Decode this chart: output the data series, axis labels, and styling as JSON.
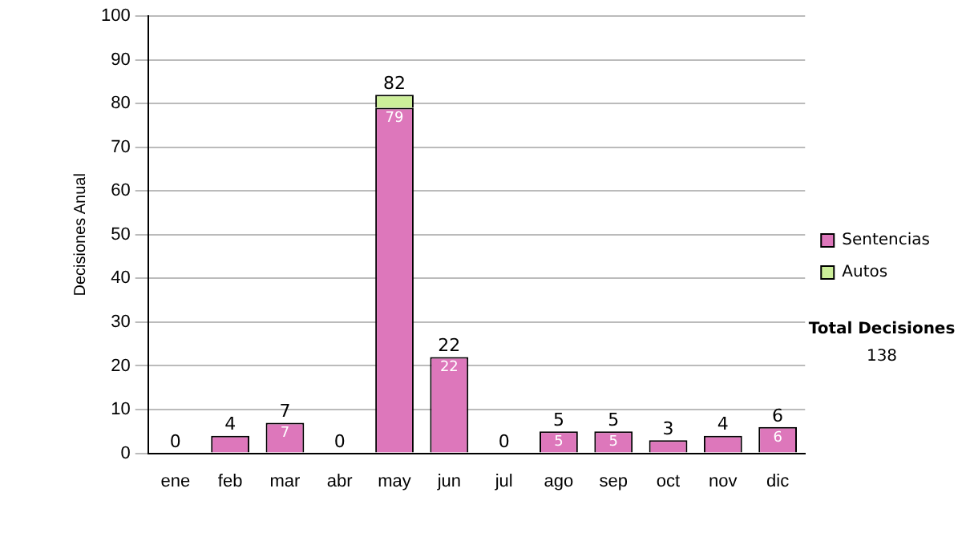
{
  "chart_data": {
    "type": "bar",
    "stacked": true,
    "ylabel": "Decisiones Anual",
    "categories": [
      "ene",
      "feb",
      "mar",
      "abr",
      "may",
      "jun",
      "jul",
      "ago",
      "sep",
      "oct",
      "nov",
      "dic"
    ],
    "series": [
      {
        "name": "Sentencias",
        "color": "#dd77bb",
        "values": [
          0,
          4,
          7,
          0,
          79,
          22,
          0,
          5,
          5,
          3,
          4,
          6
        ],
        "value_labels": [
          null,
          null,
          "7",
          null,
          "79",
          "22",
          null,
          "5",
          "5",
          null,
          null,
          "6"
        ]
      },
      {
        "name": "Autos",
        "color": "#ccee99",
        "values": [
          0,
          0,
          0,
          0,
          3,
          0,
          0,
          0,
          0,
          0,
          0,
          0
        ]
      }
    ],
    "totals": [
      "0",
      "4",
      "7",
      "0",
      "82",
      "22",
      "0",
      "5",
      "5",
      "3",
      "4",
      "6"
    ],
    "ylim": [
      0,
      100
    ],
    "yticks": [
      0,
      10,
      20,
      30,
      40,
      50,
      60,
      70,
      80,
      90,
      100
    ],
    "grid": "y",
    "legend": "right",
    "annotations": [
      "Total Decisiones",
      "138"
    ]
  }
}
